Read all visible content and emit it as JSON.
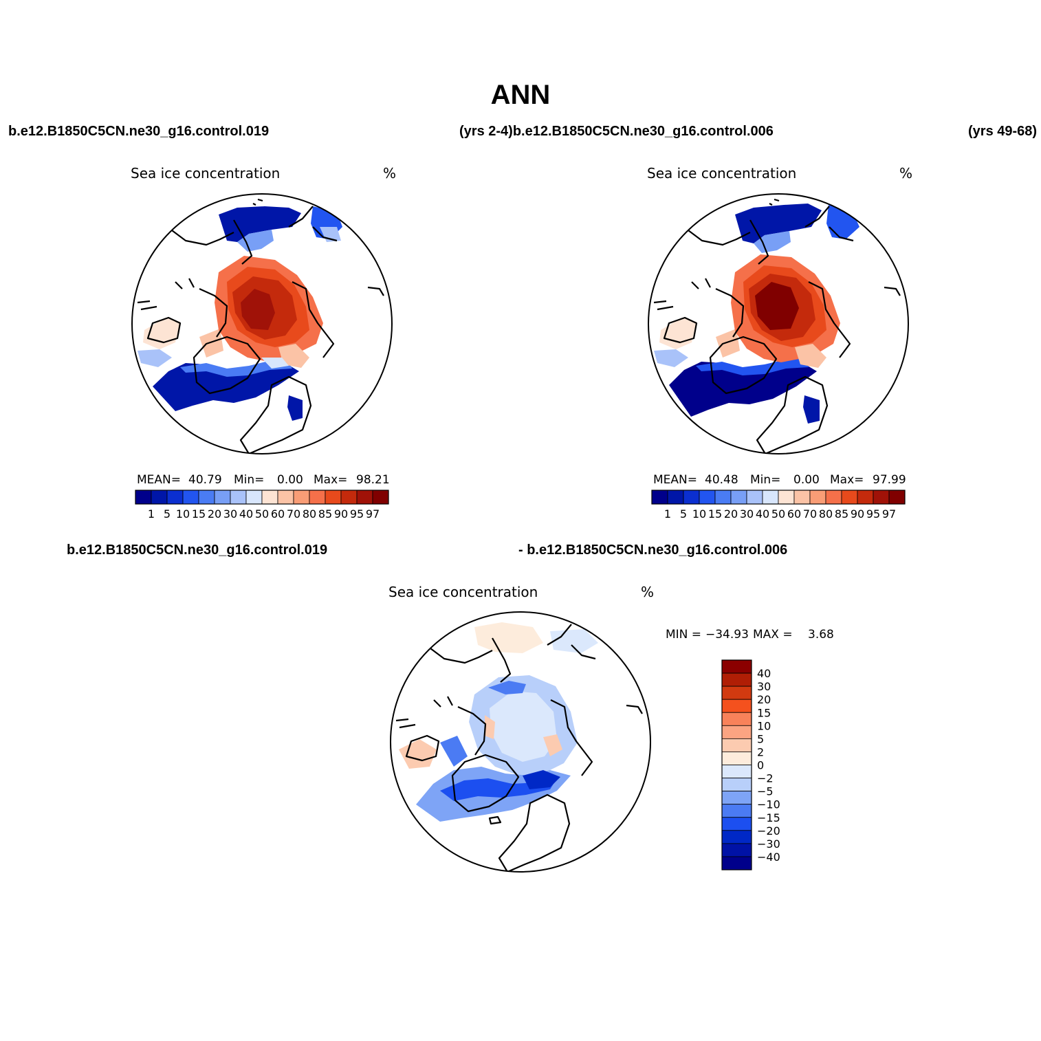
{
  "figure": {
    "title": "ANN",
    "header_left": "b.e12.B1850C5CN.ne30_g16.control.019",
    "header_mid": "(yrs 2-4)b.e12.B1850C5CN.ne30_g16.control.006",
    "header_right": "(yrs 49-68)",
    "diff_header_left": "b.e12.B1850C5CN.ne30_g16.control.019",
    "diff_header_right": "- b.e12.B1850C5CN.ne30_g16.control.006"
  },
  "panels": [
    {
      "id": "case1",
      "variable": "Sea ice concentration",
      "units": "%",
      "stats": {
        "mean_label": "MEAN=",
        "mean": "40.79",
        "min_label": "Min=",
        "min": "0.00",
        "max_label": "Max=",
        "max": "98.21"
      }
    },
    {
      "id": "case2",
      "variable": "Sea ice concentration",
      "units": "%",
      "stats": {
        "mean_label": "MEAN=",
        "mean": "40.48",
        "min_label": "Min=",
        "min": "0.00",
        "max_label": "Max=",
        "max": "97.99"
      }
    },
    {
      "id": "diff",
      "variable": "Sea ice concentration",
      "units": "%",
      "stats": {
        "min_label": "MIN =",
        "min": "−34.93",
        "max_label": "MAX =",
        "max": "3.68"
      }
    }
  ],
  "colorbar_abs": {
    "labels": [
      "1",
      "5",
      "10",
      "15",
      "20",
      "30",
      "40",
      "50",
      "60",
      "70",
      "80",
      "85",
      "90",
      "95",
      "97"
    ],
    "colors": [
      "#00008b",
      "#0016a8",
      "#0b2fd0",
      "#2255f0",
      "#4a7cf4",
      "#789ff6",
      "#a9c2f9",
      "#d8e6fc",
      "#fde4d4",
      "#fbc3a6",
      "#f99d76",
      "#f5704a",
      "#e84a1c",
      "#c42a0c",
      "#a01208",
      "#800000"
    ]
  },
  "colorbar_diff": {
    "labels": [
      "40",
      "30",
      "20",
      "15",
      "10",
      "5",
      "2",
      "0",
      "−2",
      "−5",
      "−10",
      "−15",
      "−20",
      "−30",
      "−40"
    ],
    "colors": [
      "#8b0000",
      "#b01e05",
      "#d23a10",
      "#f4511e",
      "#f8825a",
      "#fba482",
      "#fccbb0",
      "#fdecdc",
      "#dbe8fc",
      "#b8cffa",
      "#7ea4f6",
      "#4b7bf3",
      "#1c4ff0",
      "#0028c6",
      "#0012a6",
      "#00008b"
    ]
  }
}
